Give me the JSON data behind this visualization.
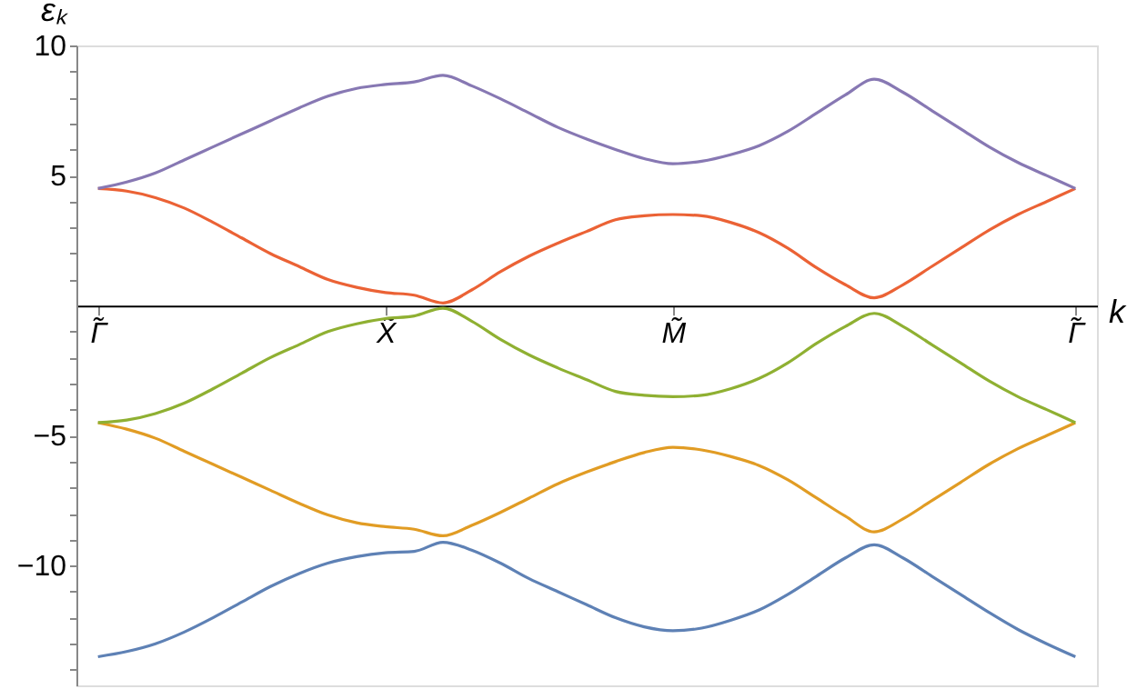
{
  "chart_data": {
    "type": "line",
    "xlabel": "k",
    "ylabel": "εₖ",
    "categories": [
      "Γ̃",
      null,
      null,
      null,
      null,
      null,
      null,
      null,
      null,
      null,
      "X̃",
      null,
      null,
      null,
      null,
      null,
      null,
      null,
      null,
      null,
      "M̃",
      null,
      null,
      null,
      null,
      null,
      null,
      null,
      null,
      null,
      null,
      null,
      null,
      null,
      "Γ̃"
    ],
    "ylim": [
      -14.6,
      10
    ],
    "yticks": [
      {
        "value": -14,
        "label": null
      },
      {
        "value": -13,
        "label": null
      },
      {
        "value": -12,
        "label": null
      },
      {
        "value": -11,
        "label": null
      },
      -10,
      {
        "value": -9,
        "label": null
      },
      {
        "value": -8,
        "label": null
      },
      {
        "value": -7,
        "label": null
      },
      {
        "value": -6,
        "label": null
      },
      -5,
      {
        "value": -4,
        "label": null
      },
      {
        "value": -3,
        "label": null
      },
      {
        "value": -2,
        "label": null
      },
      {
        "value": -1,
        "label": null
      },
      {
        "value": 1,
        "label": null
      },
      {
        "value": 2,
        "label": null
      },
      {
        "value": 3,
        "label": null
      },
      {
        "value": 4,
        "label": null
      },
      5,
      {
        "value": 6,
        "label": null
      },
      {
        "value": 7,
        "label": null
      },
      {
        "value": 8,
        "label": null
      },
      {
        "value": 9,
        "label": null
      },
      10
    ],
    "series": [
      {
        "color": "#5e81b5",
        "values": [
          -13.5,
          -13.3,
          -13.0,
          -12.55,
          -12.0,
          -11.4,
          -10.8,
          -10.3,
          -9.9,
          -9.65,
          -9.5,
          -9.45,
          -9.1,
          -9.4,
          -9.9,
          -10.5,
          -11.0,
          -11.5,
          -12.0,
          -12.35,
          -12.5,
          -12.4,
          -12.1,
          -11.7,
          -11.1,
          -10.4,
          -9.7,
          -9.2,
          -9.7,
          -10.4,
          -11.1,
          -11.8,
          -12.45,
          -13.0,
          -13.5
        ]
      },
      {
        "color": "#e19c24",
        "values": [
          -4.5,
          -4.75,
          -5.1,
          -5.6,
          -6.1,
          -6.6,
          -7.1,
          -7.6,
          -8.05,
          -8.35,
          -8.5,
          -8.6,
          -8.85,
          -8.45,
          -7.95,
          -7.4,
          -6.85,
          -6.4,
          -6.0,
          -5.65,
          -5.45,
          -5.55,
          -5.8,
          -6.15,
          -6.7,
          -7.4,
          -8.1,
          -8.7,
          -8.2,
          -7.5,
          -6.8,
          -6.1,
          -5.5,
          -5.0,
          -4.5
        ]
      },
      {
        "color": "#8fb032",
        "values": [
          -4.5,
          -4.4,
          -4.15,
          -3.75,
          -3.2,
          -2.6,
          -2.0,
          -1.5,
          -1.0,
          -0.7,
          -0.5,
          -0.4,
          -0.1,
          -0.6,
          -1.3,
          -1.9,
          -2.4,
          -2.85,
          -3.3,
          -3.45,
          -3.5,
          -3.45,
          -3.2,
          -2.8,
          -2.2,
          -1.45,
          -0.8,
          -0.3,
          -0.8,
          -1.5,
          -2.2,
          -2.9,
          -3.5,
          -4.0,
          -4.5
        ]
      },
      {
        "color": "#eb6235",
        "values": [
          4.5,
          4.4,
          4.15,
          3.75,
          3.2,
          2.6,
          2.0,
          1.5,
          1.0,
          0.7,
          0.5,
          0.4,
          0.1,
          0.6,
          1.3,
          1.9,
          2.4,
          2.85,
          3.3,
          3.45,
          3.5,
          3.45,
          3.2,
          2.8,
          2.2,
          1.45,
          0.8,
          0.3,
          0.8,
          1.5,
          2.2,
          2.9,
          3.5,
          4.0,
          4.5
        ]
      },
      {
        "color": "#8778b3",
        "values": [
          4.5,
          4.75,
          5.1,
          5.6,
          6.1,
          6.6,
          7.1,
          7.6,
          8.05,
          8.35,
          8.5,
          8.6,
          8.85,
          8.45,
          7.95,
          7.4,
          6.85,
          6.4,
          6.0,
          5.65,
          5.45,
          5.55,
          5.8,
          6.15,
          6.7,
          7.4,
          8.1,
          8.7,
          8.2,
          7.5,
          6.8,
          6.1,
          5.5,
          5.0,
          4.5
        ]
      }
    ],
    "grid": false,
    "legend": false
  }
}
